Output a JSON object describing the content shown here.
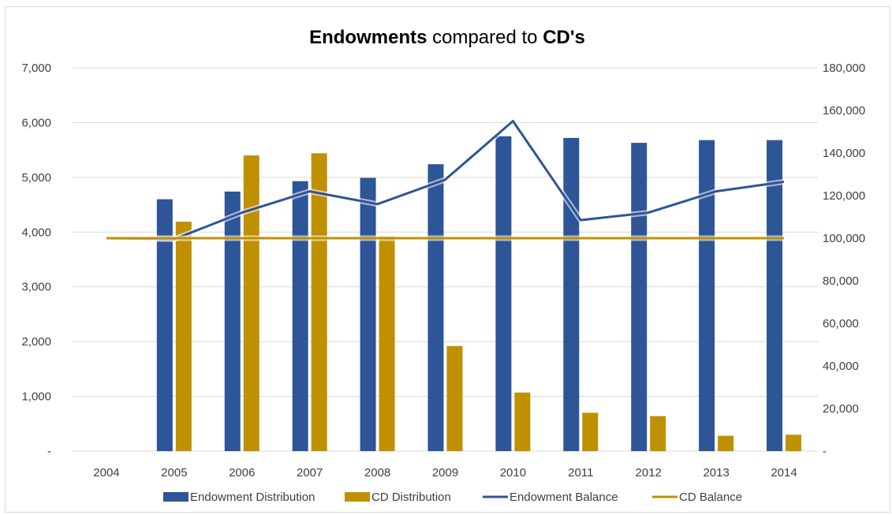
{
  "chart_data": {
    "type": "bar",
    "title": {
      "part1": "Endowments",
      "part2": " compared to ",
      "part3": "CD's"
    },
    "categories": [
      "2004",
      "2005",
      "2006",
      "2007",
      "2008",
      "2009",
      "2010",
      "2011",
      "2012",
      "2013",
      "2014"
    ],
    "y_left": {
      "min": 0,
      "max": 7000,
      "step": 1000,
      "tick_labels": [
        "-",
        "1,000",
        "2,000",
        "3,000",
        "4,000",
        "5,000",
        "6,000",
        "7,000"
      ]
    },
    "y_right": {
      "min": 0,
      "max": 180000,
      "step": 20000,
      "tick_labels": [
        "-",
        "20,000",
        "40,000",
        "60,000",
        "80,000",
        "100,000",
        "120,000",
        "140,000",
        "160,000",
        "180,000"
      ]
    },
    "grid": true,
    "legend_position": "bottom",
    "series": [
      {
        "name": "Endowment Distribution",
        "kind": "bar",
        "axis": "left",
        "color": "#2E5597",
        "values": [
          null,
          4600,
          4740,
          4930,
          4990,
          5240,
          5750,
          5720,
          5630,
          5680,
          5680
        ]
      },
      {
        "name": "CD Distribution",
        "kind": "bar",
        "axis": "left",
        "color": "#BF9000",
        "values": [
          null,
          4190,
          5400,
          5440,
          3920,
          1920,
          1070,
          700,
          640,
          280,
          300
        ]
      },
      {
        "name": "Endowment Balance",
        "kind": "line",
        "axis": "right",
        "color": "#2E5597",
        "values": [
          100000,
          99500,
          112000,
          122000,
          116000,
          127500,
          155000,
          108500,
          112000,
          122000,
          126500
        ]
      },
      {
        "name": "CD Balance",
        "kind": "line",
        "axis": "right",
        "color": "#BF9000",
        "values": [
          100000,
          100000,
          100000,
          100000,
          100000,
          100000,
          100000,
          100000,
          100000,
          100000,
          100000
        ]
      }
    ]
  }
}
